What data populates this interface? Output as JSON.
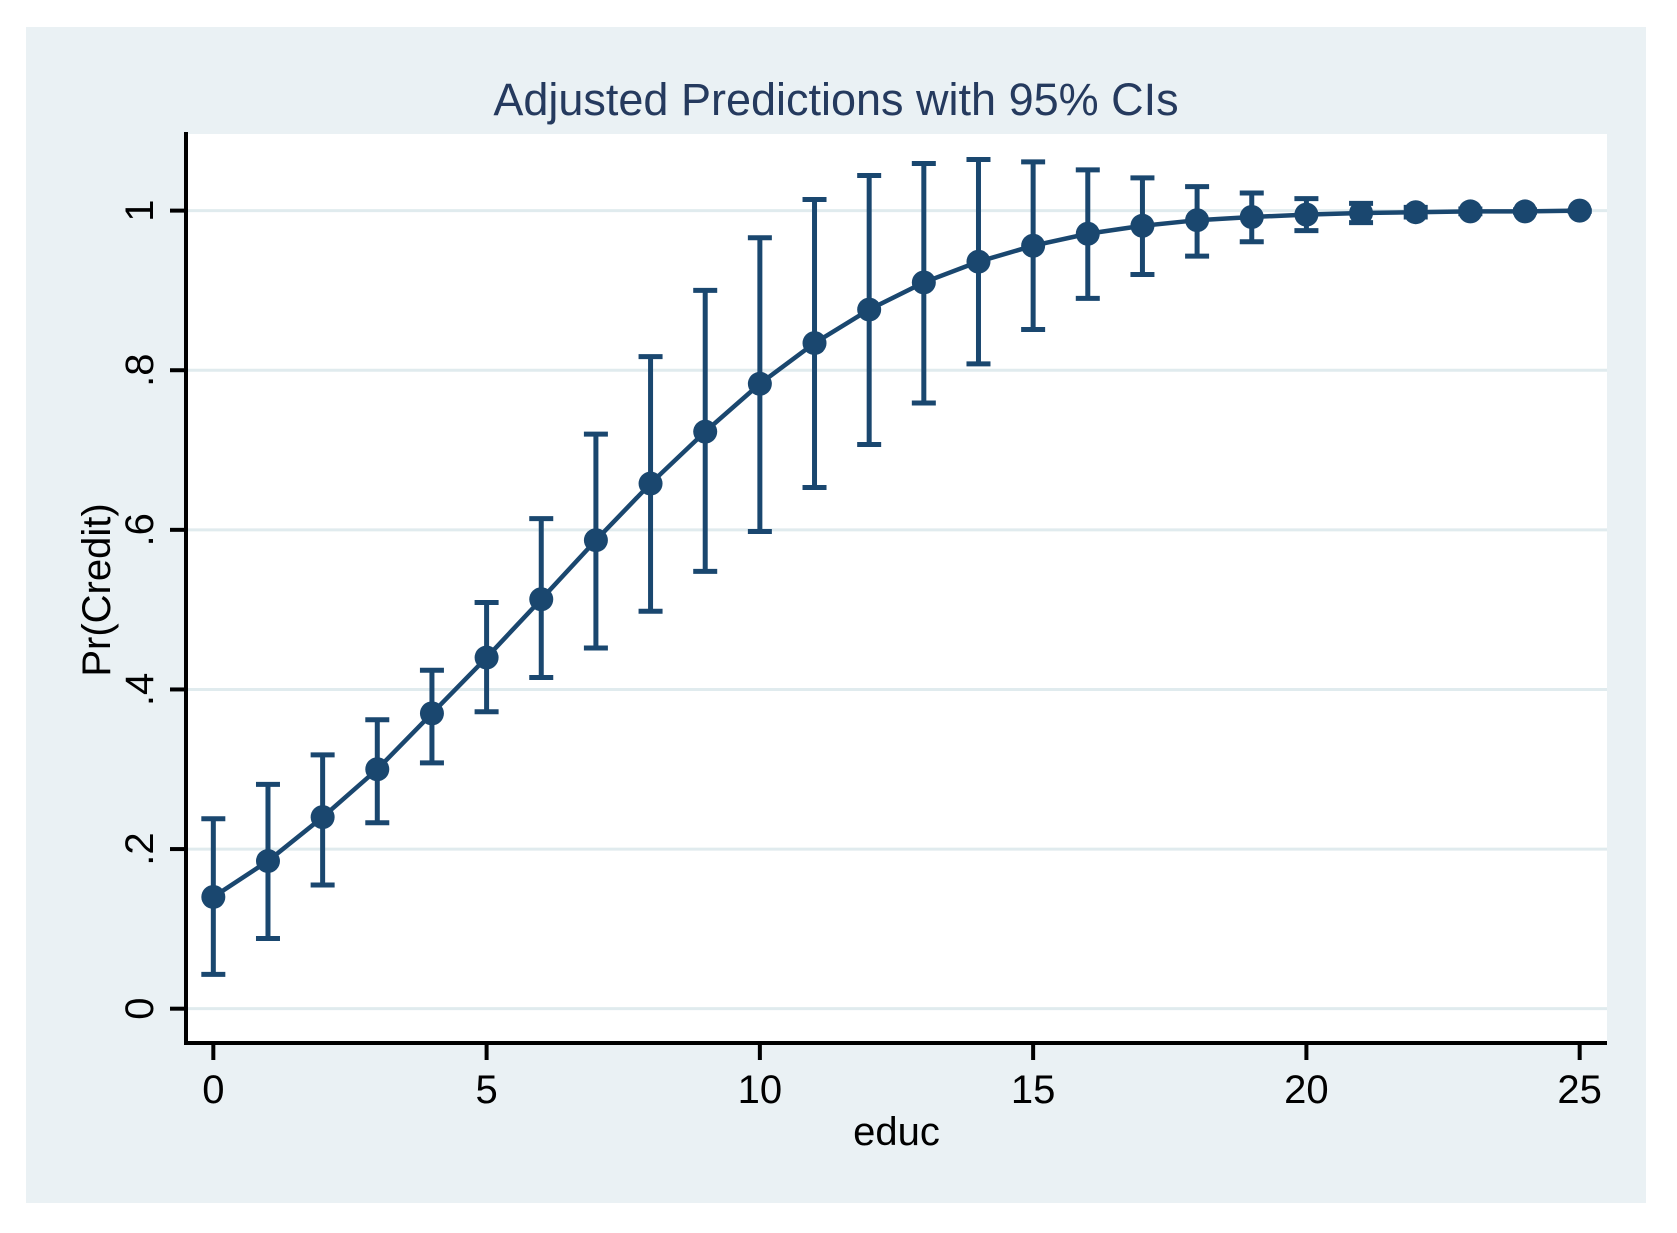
{
  "chart_data": {
    "type": "line",
    "title": "Adjusted Predictions with 95% CIs",
    "xlabel": "educ",
    "ylabel": "Pr(Credit)",
    "x_ticks": {
      "values": [
        0,
        5,
        10,
        15,
        20,
        25
      ],
      "labels": [
        "0",
        "5",
        "10",
        "15",
        "20",
        "25"
      ]
    },
    "y_ticks": {
      "values": [
        0,
        0.2,
        0.4,
        0.6,
        0.8,
        1
      ],
      "labels": [
        "0",
        ".2",
        ".4",
        ".6",
        ".8",
        "1"
      ]
    },
    "xlim": [
      -0.5,
      25.5
    ],
    "ylim": [
      -0.043,
      1.096
    ],
    "grid": "horizontal",
    "legend": "none",
    "x": [
      0,
      1,
      2,
      3,
      4,
      5,
      6,
      7,
      8,
      9,
      10,
      11,
      12,
      13,
      14,
      15,
      16,
      17,
      18,
      19,
      20,
      21,
      22,
      23,
      24,
      25
    ],
    "series": [
      {
        "name": "Adjusted prediction",
        "values": [
          0.14,
          0.185,
          0.24,
          0.3,
          0.37,
          0.44,
          0.513,
          0.587,
          0.658,
          0.723,
          0.783,
          0.834,
          0.876,
          0.91,
          0.936,
          0.956,
          0.971,
          0.981,
          0.988,
          0.992,
          0.995,
          0.997,
          0.998,
          0.999,
          0.999,
          1.0
        ],
        "ci_lower": [
          0.043,
          0.088,
          0.155,
          0.233,
          0.308,
          0.372,
          0.415,
          0.452,
          0.498,
          0.548,
          0.598,
          0.653,
          0.707,
          0.759,
          0.808,
          0.851,
          0.89,
          0.92,
          0.943,
          0.961,
          0.975,
          0.985,
          0.992,
          0.996,
          0.998,
          0.999
        ],
        "ci_upper": [
          0.238,
          0.281,
          0.318,
          0.362,
          0.424,
          0.509,
          0.614,
          0.72,
          0.817,
          0.9,
          0.966,
          1.014,
          1.044,
          1.059,
          1.064,
          1.061,
          1.051,
          1.041,
          1.03,
          1.022,
          1.015,
          1.009,
          1.004,
          1.002,
          1.001,
          1.0
        ]
      }
    ],
    "colors": {
      "series": "#1a476f",
      "title": "#253a5e",
      "outer_background": "#eaf1f4",
      "plot_background": "#ffffff",
      "gridline": "#e0ebee",
      "axis": "#000000",
      "tick_text": "#000000"
    }
  }
}
